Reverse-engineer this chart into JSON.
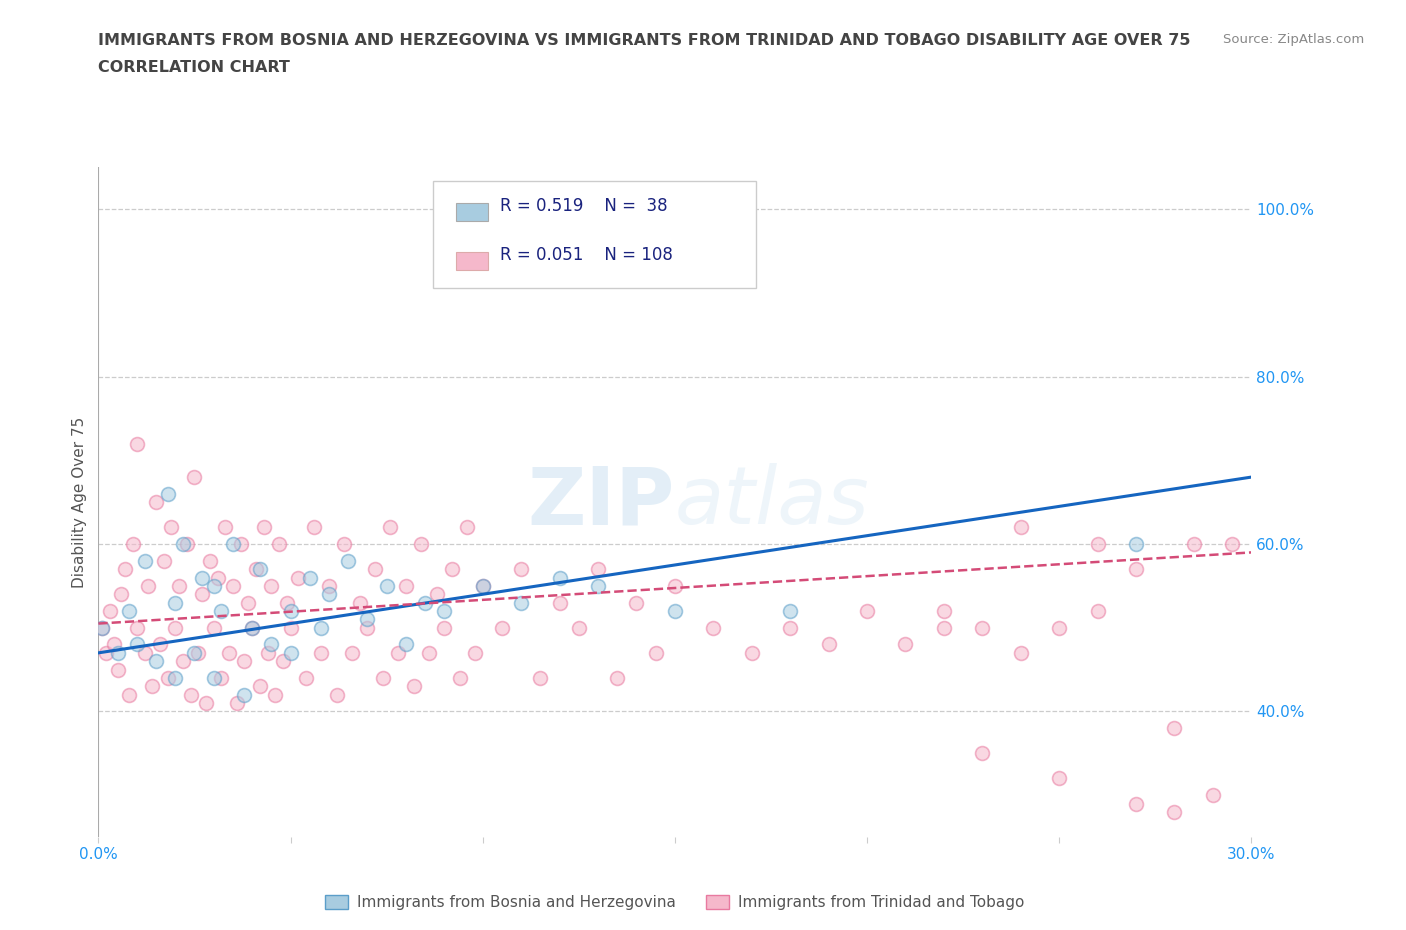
{
  "title_line1": "IMMIGRANTS FROM BOSNIA AND HERZEGOVINA VS IMMIGRANTS FROM TRINIDAD AND TOBAGO DISABILITY AGE OVER 75",
  "title_line2": "CORRELATION CHART",
  "source_text": "Source: ZipAtlas.com",
  "ylabel": "Disability Age Over 75",
  "x_min": 0.0,
  "x_max": 0.3,
  "y_min": 0.25,
  "y_max": 1.05,
  "watermark": "ZIPatlas",
  "bosnia_color": "#a8cce0",
  "bosnia_edge_color": "#5b9ec9",
  "trinidad_color": "#f5b8cb",
  "trinidad_edge_color": "#e87aa0",
  "bosnia_line_color": "#1565C0",
  "trinidad_line_color": "#d44b77",
  "R_bosnia": 0.519,
  "N_bosnia": 38,
  "R_trinidad": 0.051,
  "N_trinidad": 108,
  "legend_label_bosnia": "Immigrants from Bosnia and Herzegovina",
  "legend_label_trinidad": "Immigrants from Trinidad and Tobago",
  "bosnia_scatter_x": [
    0.001,
    0.005,
    0.008,
    0.01,
    0.012,
    0.015,
    0.018,
    0.02,
    0.02,
    0.022,
    0.025,
    0.027,
    0.03,
    0.03,
    0.032,
    0.035,
    0.038,
    0.04,
    0.042,
    0.045,
    0.05,
    0.05,
    0.055,
    0.058,
    0.06,
    0.065,
    0.07,
    0.075,
    0.08,
    0.085,
    0.09,
    0.1,
    0.11,
    0.12,
    0.13,
    0.15,
    0.18,
    0.27
  ],
  "bosnia_scatter_y": [
    0.5,
    0.47,
    0.52,
    0.48,
    0.58,
    0.46,
    0.66,
    0.44,
    0.53,
    0.6,
    0.47,
    0.56,
    0.44,
    0.55,
    0.52,
    0.6,
    0.42,
    0.5,
    0.57,
    0.48,
    0.52,
    0.47,
    0.56,
    0.5,
    0.54,
    0.58,
    0.51,
    0.55,
    0.48,
    0.53,
    0.52,
    0.55,
    0.53,
    0.56,
    0.55,
    0.52,
    0.52,
    0.6
  ],
  "trinidad_scatter_x": [
    0.001,
    0.002,
    0.003,
    0.004,
    0.005,
    0.006,
    0.007,
    0.008,
    0.009,
    0.01,
    0.01,
    0.012,
    0.013,
    0.014,
    0.015,
    0.016,
    0.017,
    0.018,
    0.019,
    0.02,
    0.021,
    0.022,
    0.023,
    0.024,
    0.025,
    0.026,
    0.027,
    0.028,
    0.029,
    0.03,
    0.031,
    0.032,
    0.033,
    0.034,
    0.035,
    0.036,
    0.037,
    0.038,
    0.039,
    0.04,
    0.041,
    0.042,
    0.043,
    0.044,
    0.045,
    0.046,
    0.047,
    0.048,
    0.049,
    0.05,
    0.052,
    0.054,
    0.056,
    0.058,
    0.06,
    0.062,
    0.064,
    0.066,
    0.068,
    0.07,
    0.072,
    0.074,
    0.076,
    0.078,
    0.08,
    0.082,
    0.084,
    0.086,
    0.088,
    0.09,
    0.092,
    0.094,
    0.096,
    0.098,
    0.1,
    0.105,
    0.11,
    0.115,
    0.12,
    0.125,
    0.13,
    0.135,
    0.14,
    0.145,
    0.15,
    0.16,
    0.17,
    0.18,
    0.19,
    0.2,
    0.21,
    0.22,
    0.23,
    0.24,
    0.25,
    0.26,
    0.27,
    0.28,
    0.285,
    0.29,
    0.295,
    0.28,
    0.27,
    0.26,
    0.25,
    0.24,
    0.23,
    0.22
  ],
  "trinidad_scatter_y": [
    0.5,
    0.47,
    0.52,
    0.48,
    0.45,
    0.54,
    0.57,
    0.42,
    0.6,
    0.5,
    0.72,
    0.47,
    0.55,
    0.43,
    0.65,
    0.48,
    0.58,
    0.44,
    0.62,
    0.5,
    0.55,
    0.46,
    0.6,
    0.42,
    0.68,
    0.47,
    0.54,
    0.41,
    0.58,
    0.5,
    0.56,
    0.44,
    0.62,
    0.47,
    0.55,
    0.41,
    0.6,
    0.46,
    0.53,
    0.5,
    0.57,
    0.43,
    0.62,
    0.47,
    0.55,
    0.42,
    0.6,
    0.46,
    0.53,
    0.5,
    0.56,
    0.44,
    0.62,
    0.47,
    0.55,
    0.42,
    0.6,
    0.47,
    0.53,
    0.5,
    0.57,
    0.44,
    0.62,
    0.47,
    0.55,
    0.43,
    0.6,
    0.47,
    0.54,
    0.5,
    0.57,
    0.44,
    0.62,
    0.47,
    0.55,
    0.5,
    0.57,
    0.44,
    0.53,
    0.5,
    0.57,
    0.44,
    0.53,
    0.47,
    0.55,
    0.5,
    0.47,
    0.5,
    0.48,
    0.52,
    0.48,
    0.5,
    0.5,
    0.47,
    0.5,
    0.52,
    0.57,
    0.28,
    0.6,
    0.3,
    0.6,
    0.38,
    0.29,
    0.6,
    0.32,
    0.62,
    0.35,
    0.52
  ],
  "background_color": "#ffffff",
  "dot_size": 100,
  "dot_alpha": 0.55
}
